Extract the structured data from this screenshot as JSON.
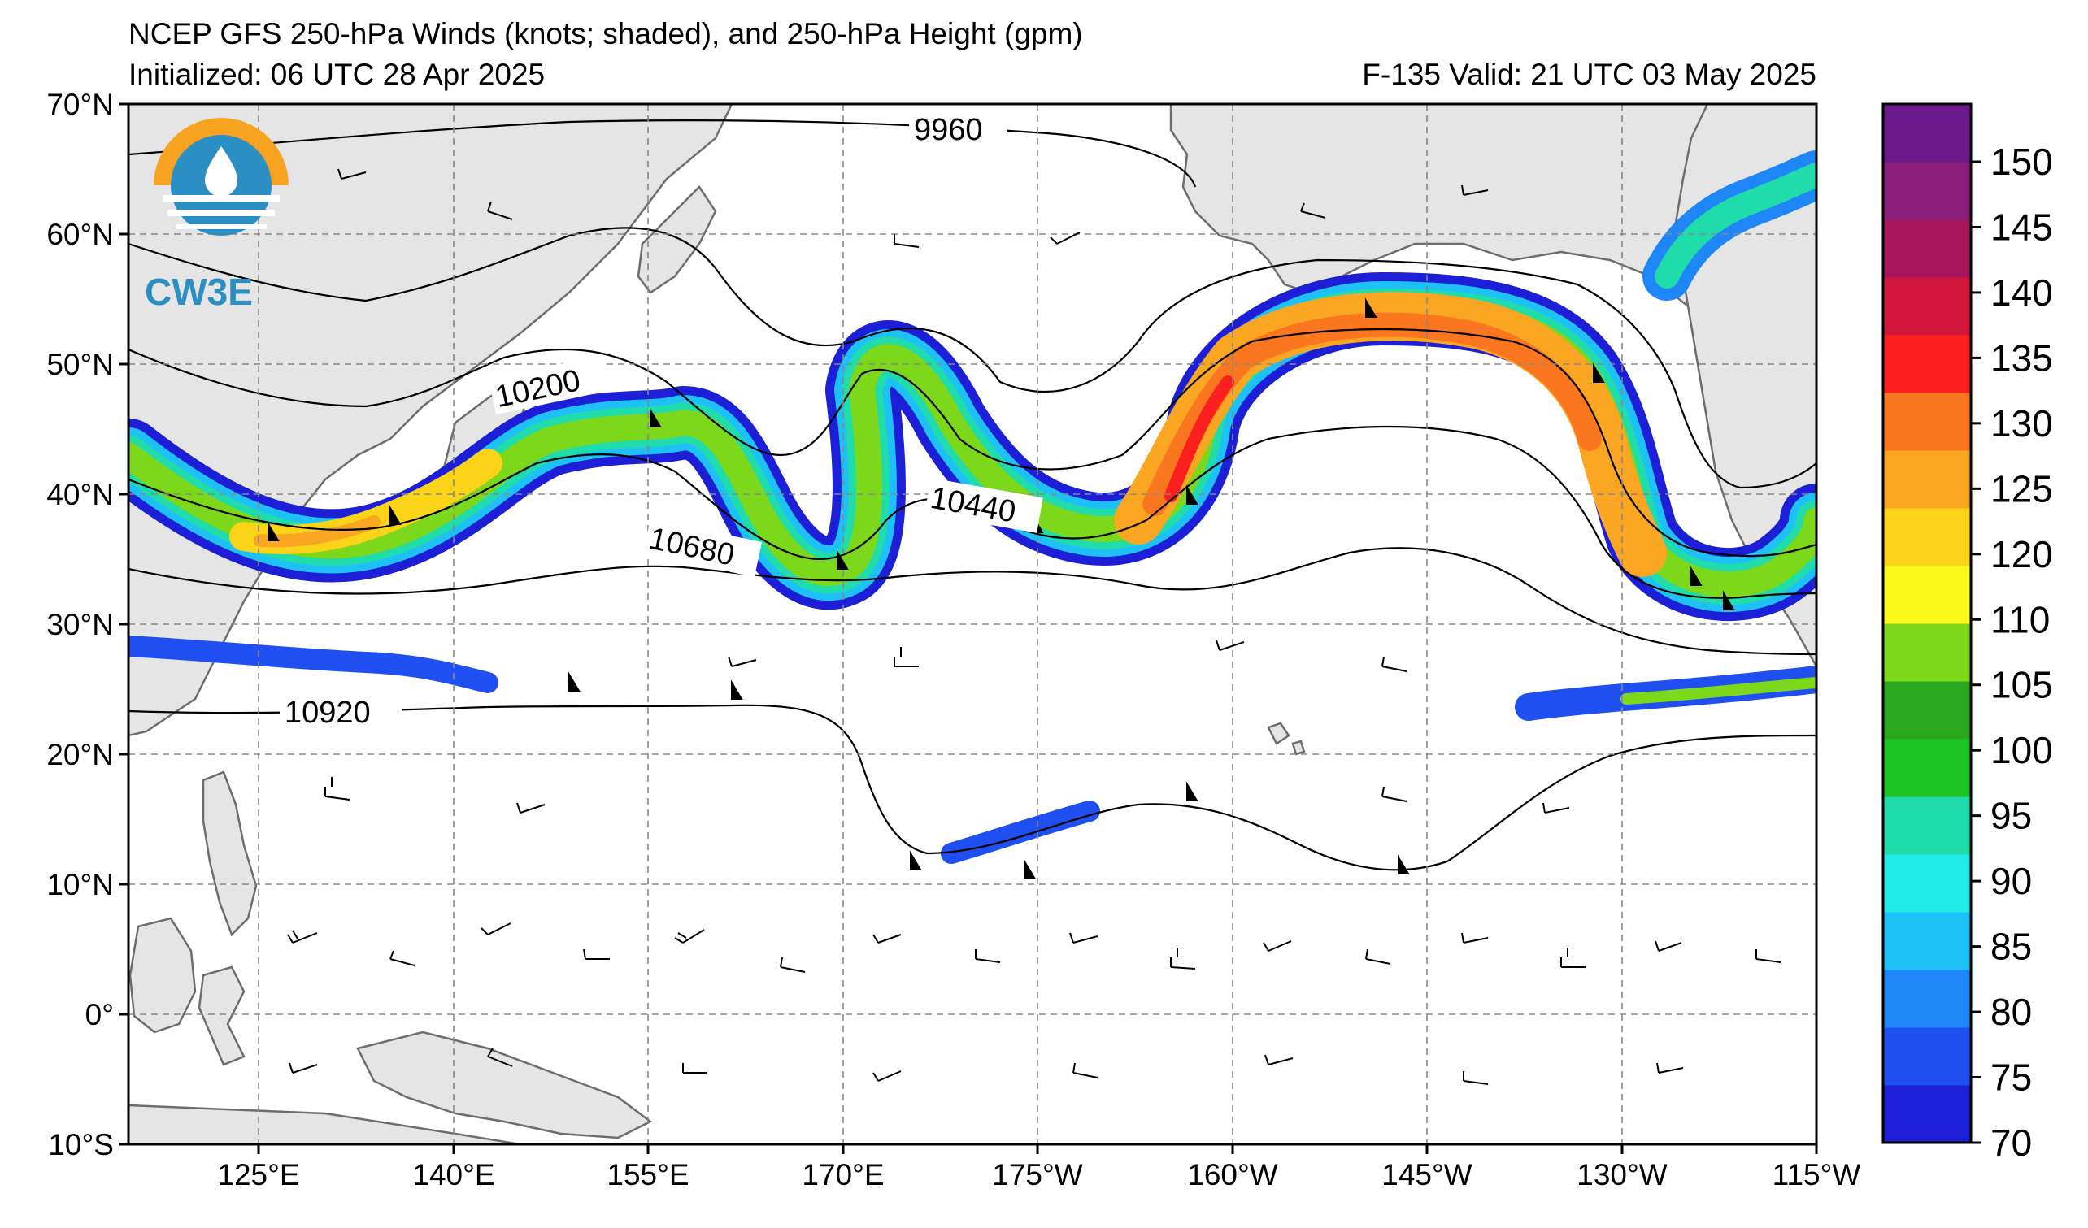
{
  "header": {
    "title": "NCEP GFS 250-hPa Winds (knots; shaded), and 250-hPa Height (gpm)",
    "initialized": "Initialized: 06 UTC 28 Apr 2025",
    "valid": "F-135  Valid: 21 UTC 03 May 2025"
  },
  "logo": {
    "text": "CW3E"
  },
  "map": {
    "lat_labels": [
      "70°N",
      "60°N",
      "50°N",
      "40°N",
      "30°N",
      "20°N",
      "10°N",
      "0°",
      "10°S"
    ],
    "lon_labels": [
      "125°E",
      "140°E",
      "155°E",
      "170°E",
      "175°W",
      "160°W",
      "145°W",
      "130°W",
      "115°W"
    ],
    "lat_range": [
      -10,
      70
    ],
    "lon_range": [
      115,
      245
    ],
    "contour_labels": [
      "9960",
      "10200",
      "10440",
      "10680",
      "10920"
    ],
    "land_color": "#e5e5e5",
    "grid": true
  },
  "colorbar": {
    "ticks": [
      "70",
      "75",
      "80",
      "85",
      "90",
      "95",
      "100",
      "105",
      "110",
      "120",
      "125",
      "130",
      "135",
      "140",
      "145",
      "150"
    ],
    "colors": [
      "#1c1fd6",
      "#1f4ff0",
      "#1f86f7",
      "#1ec1f5",
      "#22ece8",
      "#1fdcaa",
      "#1cc424",
      "#2aa81e",
      "#7dd71b",
      "#f9f91b",
      "#fbd318",
      "#fba623",
      "#fb771f",
      "#fb1f1f",
      "#d2173a",
      "#a6165a",
      "#8a1c7a",
      "#6a1a8a"
    ]
  }
}
